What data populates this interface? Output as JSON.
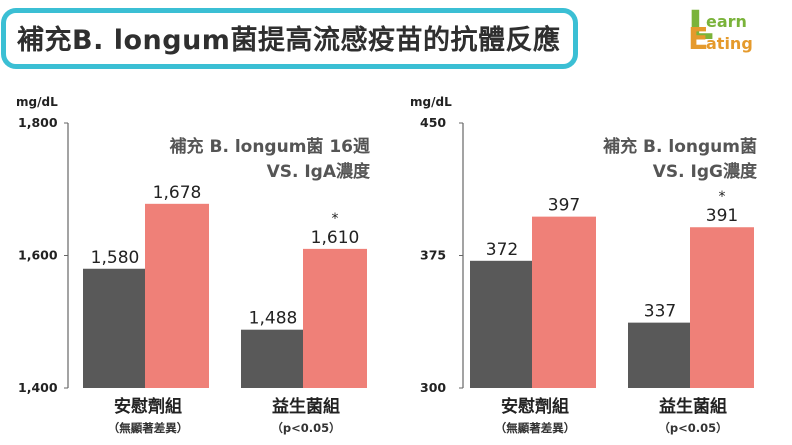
{
  "header": {
    "title": "補充B. longum菌提高流感疫苗的抗體反應",
    "logo_line1": "earn",
    "logo_line2": "ating",
    "logo_initial1": "L",
    "logo_initial2": "E"
  },
  "colors": {
    "placebo": "#595959",
    "probiotic": "#ef8078",
    "banner_border": "#3bbfd4"
  },
  "chart_data": [
    {
      "type": "bar",
      "unit": "mg/dL",
      "caption_line1": "補充 B. longum菌 16週",
      "caption_line2": "VS. IgA濃度",
      "ylim": [
        1400,
        1800
      ],
      "yticks": [
        1400,
        1600,
        1800
      ],
      "ytick_labels": [
        "1,400",
        "1,600",
        "1,800"
      ],
      "categories": [
        "安慰劑組",
        "益生菌組"
      ],
      "category_notes": [
        "（無顯著差異）",
        "（p<0.05）"
      ],
      "series": [
        {
          "values": [
            1580,
            1488
          ],
          "labels": [
            "1,580",
            "1,488"
          ]
        },
        {
          "values": [
            1678,
            1610
          ],
          "labels": [
            "1,678",
            "1,610"
          ]
        }
      ],
      "significance": "*"
    },
    {
      "type": "bar",
      "unit": "mg/dL",
      "caption_line1": "補充 B. longum菌",
      "caption_line2": "VS. IgG濃度",
      "ylim": [
        300,
        450
      ],
      "yticks": [
        300,
        375,
        450
      ],
      "ytick_labels": [
        "300",
        "375",
        "450"
      ],
      "categories": [
        "安慰劑組",
        "益生菌組"
      ],
      "category_notes": [
        "（無顯著差異）",
        "（p<0.05）"
      ],
      "series": [
        {
          "values": [
            372,
            337
          ],
          "labels": [
            "372",
            "337"
          ]
        },
        {
          "values": [
            397,
            391
          ],
          "labels": [
            "397",
            "391"
          ]
        }
      ],
      "significance": "*"
    }
  ]
}
